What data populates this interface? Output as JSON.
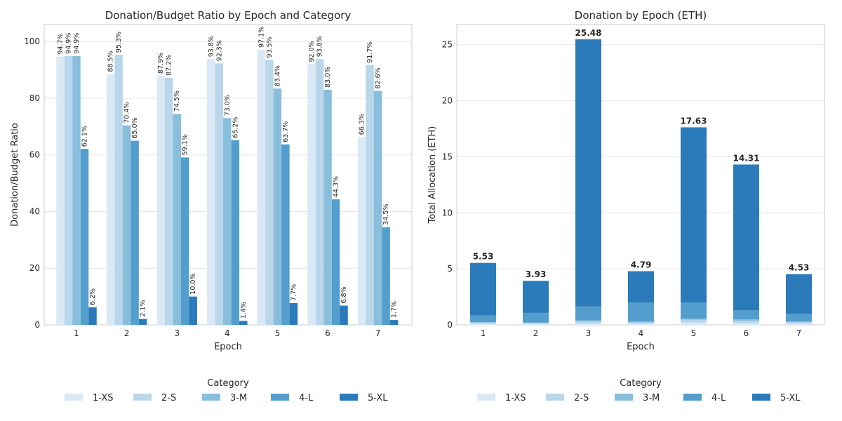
{
  "chart_data": [
    {
      "type": "bar",
      "title": "Donation/Budget Ratio by Epoch and Category",
      "xlabel": "Epoch",
      "ylabel": "Donation/Budget Ratio",
      "categories": [
        "1",
        "2",
        "3",
        "4",
        "5",
        "6",
        "7"
      ],
      "ylim": [
        0,
        106
      ],
      "yticks": [
        0,
        20,
        40,
        60,
        80,
        100
      ],
      "grid": true,
      "legend": {
        "title": "Category",
        "placement": "bottom"
      },
      "series": [
        {
          "name": "1-XS",
          "color": "#dbe9f6",
          "values": [
            94.7,
            88.5,
            87.9,
            93.8,
            97.1,
            92.0,
            66.3
          ],
          "labels": [
            "94.7%",
            "88.5%",
            "87.9%",
            "93.8%",
            "97.1%",
            "92.0%",
            "66.3%"
          ]
        },
        {
          "name": "2-S",
          "color": "#bad6eb",
          "values": [
            94.9,
            95.3,
            87.2,
            92.3,
            93.5,
            93.8,
            91.7
          ],
          "labels": [
            "94.9%",
            "95.3%",
            "87.2%",
            "92.3%",
            "93.5%",
            "93.8%",
            "91.7%"
          ]
        },
        {
          "name": "3-M",
          "color": "#89bedc",
          "values": [
            94.9,
            70.4,
            74.5,
            73.0,
            83.4,
            83.0,
            82.6
          ],
          "labels": [
            "94.9%",
            "70.4%",
            "74.5%",
            "73.0%",
            "83.4%",
            "83.0%",
            "82.6%"
          ]
        },
        {
          "name": "4-L",
          "color": "#539ecd",
          "values": [
            62.1,
            65.0,
            59.1,
            65.2,
            63.7,
            44.3,
            34.5
          ],
          "labels": [
            "62.1%",
            "65.0%",
            "59.1%",
            "65.2%",
            "63.7%",
            "44.3%",
            "34.5%"
          ]
        },
        {
          "name": "5-XL",
          "color": "#2b7bba",
          "values": [
            6.2,
            2.1,
            10.0,
            1.4,
            7.7,
            6.8,
            1.7
          ],
          "labels": [
            "6.2%",
            "2.1%",
            "10.0%",
            "1.4%",
            "7.7%",
            "6.8%",
            "1.7%"
          ]
        }
      ]
    },
    {
      "type": "bar",
      "stacked": true,
      "title": "Donation by Epoch (ETH)",
      "xlabel": "Epoch",
      "ylabel": "Total Allocation (ETH)",
      "categories": [
        "1",
        "2",
        "3",
        "4",
        "5",
        "6",
        "7"
      ],
      "ylim": [
        0,
        26.8
      ],
      "yticks": [
        0,
        5,
        10,
        15,
        20,
        25
      ],
      "grid": true,
      "legend": {
        "title": "Category",
        "placement": "bottom"
      },
      "totals": [
        5.53,
        3.93,
        25.48,
        4.79,
        17.63,
        14.31,
        4.53
      ],
      "total_labels": [
        "5.53",
        "3.93",
        "25.48",
        "4.79",
        "17.63",
        "14.31",
        "4.53"
      ],
      "series": [
        {
          "name": "1-XS",
          "color": "#dbe9f6",
          "values": [
            0.08,
            0.07,
            0.12,
            0.1,
            0.2,
            0.15,
            0.1
          ]
        },
        {
          "name": "2-S",
          "color": "#bad6eb",
          "values": [
            0.12,
            0.1,
            0.18,
            0.12,
            0.25,
            0.22,
            0.15
          ]
        },
        {
          "name": "3-M",
          "color": "#89bedc",
          "values": [
            0.05,
            0.05,
            0.1,
            0.08,
            0.1,
            0.12,
            0.05
          ]
        },
        {
          "name": "4-L",
          "color": "#539ecd",
          "values": [
            0.6,
            0.85,
            1.25,
            1.7,
            1.45,
            0.8,
            0.7
          ]
        },
        {
          "name": "5-XL",
          "color": "#2b7bba",
          "values": [
            4.68,
            2.86,
            23.83,
            2.79,
            15.63,
            13.02,
            3.53
          ]
        }
      ]
    }
  ]
}
